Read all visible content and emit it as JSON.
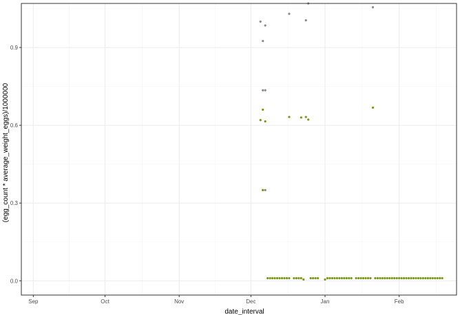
{
  "chart_data": {
    "type": "scatter",
    "title": "",
    "xlabel": "date_interval",
    "ylabel": "(egg_count * average_weight_eggs)/1000000",
    "x_axis_type": "date",
    "xlim": [
      "2019-08-27",
      "2020-02-25"
    ],
    "ylim": [
      -0.055,
      1.07
    ],
    "x_ticks": [
      {
        "date": "2019-09-01",
        "label": "Sep"
      },
      {
        "date": "2019-10-01",
        "label": "Oct"
      },
      {
        "date": "2019-11-01",
        "label": "Nov"
      },
      {
        "date": "2019-12-01",
        "label": "Dec"
      },
      {
        "date": "2020-01-01",
        "label": "Jan"
      },
      {
        "date": "2020-02-01",
        "label": "Feb"
      }
    ],
    "y_ticks": [
      {
        "value": 0.0,
        "label": "0.0"
      },
      {
        "value": 0.3,
        "label": "0.3"
      },
      {
        "value": 0.6,
        "label": "0.6"
      },
      {
        "value": 0.9,
        "label": "0.9"
      }
    ],
    "grid": true,
    "legend": "none",
    "colors": {
      "green": "#7a9a1a",
      "gray": "#8a8a8a",
      "panel_border": "#333333",
      "grid_major": "#ebebeb",
      "grid_minor": "#f5f5f5"
    },
    "series": [
      {
        "color": "gray",
        "points": [
          [
            "2019-12-05",
            1.0
          ],
          [
            "2019-12-07",
            0.985
          ],
          [
            "2019-12-06",
            0.925
          ],
          [
            "2019-12-06",
            0.735
          ],
          [
            "2019-12-07",
            0.735
          ],
          [
            "2019-12-06",
            0.35
          ],
          [
            "2019-12-07",
            0.35
          ],
          [
            "2019-12-17",
            1.03
          ],
          [
            "2019-12-24",
            1.005
          ],
          [
            "2019-12-25",
            1.07
          ],
          [
            "2020-01-21",
            1.055
          ]
        ]
      },
      {
        "color": "green",
        "points": [
          [
            "2019-12-05",
            0.62
          ],
          [
            "2019-12-06",
            0.66
          ],
          [
            "2019-12-07",
            0.615
          ],
          [
            "2019-12-06",
            0.35
          ],
          [
            "2019-12-17",
            0.632
          ],
          [
            "2019-12-22",
            0.63
          ],
          [
            "2019-12-24",
            0.632
          ],
          [
            "2019-12-25",
            0.622
          ],
          [
            "2020-01-21",
            0.668
          ],
          [
            "2019-12-08",
            0.01
          ],
          [
            "2019-12-09",
            0.01
          ],
          [
            "2019-12-10",
            0.01
          ],
          [
            "2019-12-11",
            0.01
          ],
          [
            "2019-12-12",
            0.01
          ],
          [
            "2019-12-13",
            0.01
          ],
          [
            "2019-12-14",
            0.01
          ],
          [
            "2019-12-15",
            0.01
          ],
          [
            "2019-12-16",
            0.01
          ],
          [
            "2019-12-17",
            0.01
          ],
          [
            "2019-12-19",
            0.01
          ],
          [
            "2019-12-20",
            0.01
          ],
          [
            "2019-12-21",
            0.01
          ],
          [
            "2019-12-22",
            0.01
          ],
          [
            "2019-12-23",
            0.005
          ],
          [
            "2019-12-26",
            0.01
          ],
          [
            "2019-12-27",
            0.01
          ],
          [
            "2019-12-28",
            0.01
          ],
          [
            "2019-12-29",
            0.01
          ],
          [
            "2020-01-01",
            0.005
          ],
          [
            "2020-01-02",
            0.01
          ],
          [
            "2020-01-03",
            0.01
          ],
          [
            "2020-01-04",
            0.01
          ],
          [
            "2020-01-05",
            0.01
          ],
          [
            "2020-01-06",
            0.01
          ],
          [
            "2020-01-07",
            0.01
          ],
          [
            "2020-01-08",
            0.01
          ],
          [
            "2020-01-09",
            0.01
          ],
          [
            "2020-01-10",
            0.01
          ],
          [
            "2020-01-11",
            0.01
          ],
          [
            "2020-01-12",
            0.01
          ],
          [
            "2020-01-14",
            0.01
          ],
          [
            "2020-01-15",
            0.01
          ],
          [
            "2020-01-16",
            0.01
          ],
          [
            "2020-01-17",
            0.01
          ],
          [
            "2020-01-18",
            0.01
          ],
          [
            "2020-01-19",
            0.01
          ],
          [
            "2020-01-20",
            0.01
          ],
          [
            "2020-01-22",
            0.01
          ],
          [
            "2020-01-23",
            0.01
          ],
          [
            "2020-01-24",
            0.01
          ],
          [
            "2020-01-25",
            0.01
          ],
          [
            "2020-01-26",
            0.01
          ],
          [
            "2020-01-27",
            0.01
          ],
          [
            "2020-01-28",
            0.01
          ],
          [
            "2020-01-29",
            0.01
          ],
          [
            "2020-01-30",
            0.01
          ],
          [
            "2020-01-31",
            0.01
          ],
          [
            "2020-02-01",
            0.01
          ],
          [
            "2020-02-02",
            0.01
          ],
          [
            "2020-02-03",
            0.01
          ],
          [
            "2020-02-04",
            0.01
          ],
          [
            "2020-02-05",
            0.01
          ],
          [
            "2020-02-06",
            0.01
          ],
          [
            "2020-02-07",
            0.01
          ],
          [
            "2020-02-08",
            0.01
          ],
          [
            "2020-02-09",
            0.01
          ],
          [
            "2020-02-10",
            0.01
          ],
          [
            "2020-02-11",
            0.01
          ],
          [
            "2020-02-12",
            0.01
          ],
          [
            "2020-02-13",
            0.01
          ],
          [
            "2020-02-14",
            0.01
          ],
          [
            "2020-02-15",
            0.01
          ],
          [
            "2020-02-16",
            0.01
          ],
          [
            "2020-02-17",
            0.01
          ],
          [
            "2020-02-18",
            0.01
          ],
          [
            "2020-02-19",
            0.01
          ]
        ]
      }
    ]
  }
}
